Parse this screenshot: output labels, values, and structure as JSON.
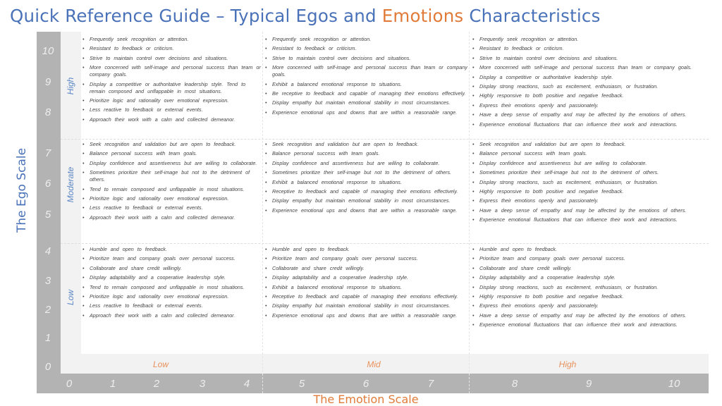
{
  "title": {
    "prefix": "Quick Reference Guide – Typical Egos and ",
    "highlight": "Emotions",
    "suffix": " Characteristics"
  },
  "colors": {
    "title_blue": "#4a72b8",
    "emotion_orange": "#e07b39",
    "frame_gray": "#b3b3b3"
  },
  "ego_axis": {
    "label": "The Ego Scale",
    "ticks": [
      "10",
      "9",
      "8",
      "7",
      "6",
      "5",
      "4",
      "3",
      "2",
      "1",
      "0"
    ],
    "levels": [
      "High",
      "Moderate",
      "Low"
    ]
  },
  "emotion_axis": {
    "label": "The Emotion Scale",
    "ticks": [
      "0",
      "1",
      "2",
      "3",
      "4",
      "5",
      "6",
      "7",
      "8",
      "9",
      "10"
    ],
    "levels": [
      "Low",
      "Mid",
      "High"
    ]
  },
  "grid": [
    [
      [
        "Frequently seek recognition or attention.",
        "Resistant to feedback or criticism.",
        "Strive to maintain control over decisions and situations.",
        "More concerned with self-image and personal success than team or company goals.",
        "Display a competitive or authoritative leadership style. Tend to remain composed and unflappable in most situations.",
        "Prioritize logic and rationality over emotional expression.",
        "Less reactive to feedback or external events.",
        "Approach their work with a calm and collected demeanor."
      ],
      [
        "Frequently seek recognition or attention.",
        "Resistant to feedback or criticism.",
        "Strive to maintain control over decisions and situations.",
        "More concerned with self-image and personal success than team or company goals.",
        "Exhibit a balanced emotional response to situations.",
        "Be receptive to feedback and capable of managing their emotions effectively.",
        "Display empathy but maintain emotional stability in most circumstances.",
        "Experience emotional ups and downs that are within a reasonable range."
      ],
      [
        "Frequently seek recognition or attention.",
        "Resistant to feedback or criticism.",
        "Strive to maintain control over decisions and situations.",
        "More concerned with self-image and personal success than team or company goals.",
        "Display a competitive or authoritative leadership style.",
        "Display strong reactions, such as excitement, enthusiasm, or frustration.",
        "Highly responsive to both positive and negative feedback.",
        "Express their emotions openly and passionately.",
        "Have a deep sense of empathy and may be affected by the emotions of others.",
        "Experience emotional fluctuations that can influence their work and interactions."
      ]
    ],
    [
      [
        "Seek recognition and validation but are open to feedback.",
        "Balance personal success with team goals.",
        "Display confidence and assertiveness but are willing to collaborate.",
        "Sometimes prioritize their self-image but not to the detriment of others.",
        "Tend to remain composed and unflappable in most situations.",
        "Prioritize logic and rationality over emotional expression.",
        "Less reactive to feedback or external events.",
        "Approach their work with a calm and collected demeanor."
      ],
      [
        "Seek recognition and validation but are open to feedback.",
        "Balance personal success with team goals.",
        "Display confidence and assertiveness but are willing to collaborate.",
        "Sometimes prioritize their self-image but not to the detriment of others.",
        "Exhibit a balanced emotional response to situations.",
        "Receptive to feedback and capable of managing their emotions effectively.",
        "Display empathy but maintain emotional stability in most circumstances.",
        "Experience emotional ups and downs that are within a reasonable range."
      ],
      [
        "Seek recognition and validation but are open to feedback.",
        "Balance personal success with team goals.",
        "Display confidence and assertiveness but are willing to collaborate.",
        "Sometimes prioritize their self-image but not to the detriment of others.",
        "Display strong reactions, such as excitement, enthusiasm, or frustration.",
        "Highly responsive to both positive and negative feedback.",
        "Express their emotions openly and passionately.",
        "Have a deep sense of empathy and may be affected by the emotions of others.",
        "Experience emotional fluctuations that can influence their work and interactions."
      ]
    ],
    [
      [
        "Humble and open to feedback.",
        "Prioritize team and company goals over personal success.",
        "Collaborate and share credit willingly.",
        "Display adaptability and a cooperative leadership style.",
        "Tend to remain composed and unflappable in most situations.",
        "Prioritize logic and rationality over emotional expression.",
        "Less reactive to feedback or external events.",
        "Approach their work with a calm and collected demeanor."
      ],
      [
        "Humble and open to feedback.",
        "Prioritize team and company goals over personal success.",
        "Collaborate and share credit willingly.",
        "Display adaptability and a cooperative leadership style.",
        "Exhibit a balanced emotional response to situations.",
        "Receptive to feedback and capable of managing their emotions effectively.",
        "Display empathy but maintain emotional stability in most circumstances.",
        "Experience emotional ups and downs that are within a reasonable range."
      ],
      [
        "Humble and open to feedback.",
        "Prioritize team and company goals over personal success.",
        "Collaborate and share credit willingly.",
        "Display adaptability and a cooperative leadership style.",
        "Display strong reactions, such as excitement, enthusiasm, or frustration.",
        "Highly responsive to both positive and negative feedback.",
        "Express their emotions openly and passionately.",
        "Have a deep sense of empathy and may be affected by the emotions of others.",
        "Experience emotional fluctuations that can influence their work and interactions."
      ]
    ]
  ]
}
